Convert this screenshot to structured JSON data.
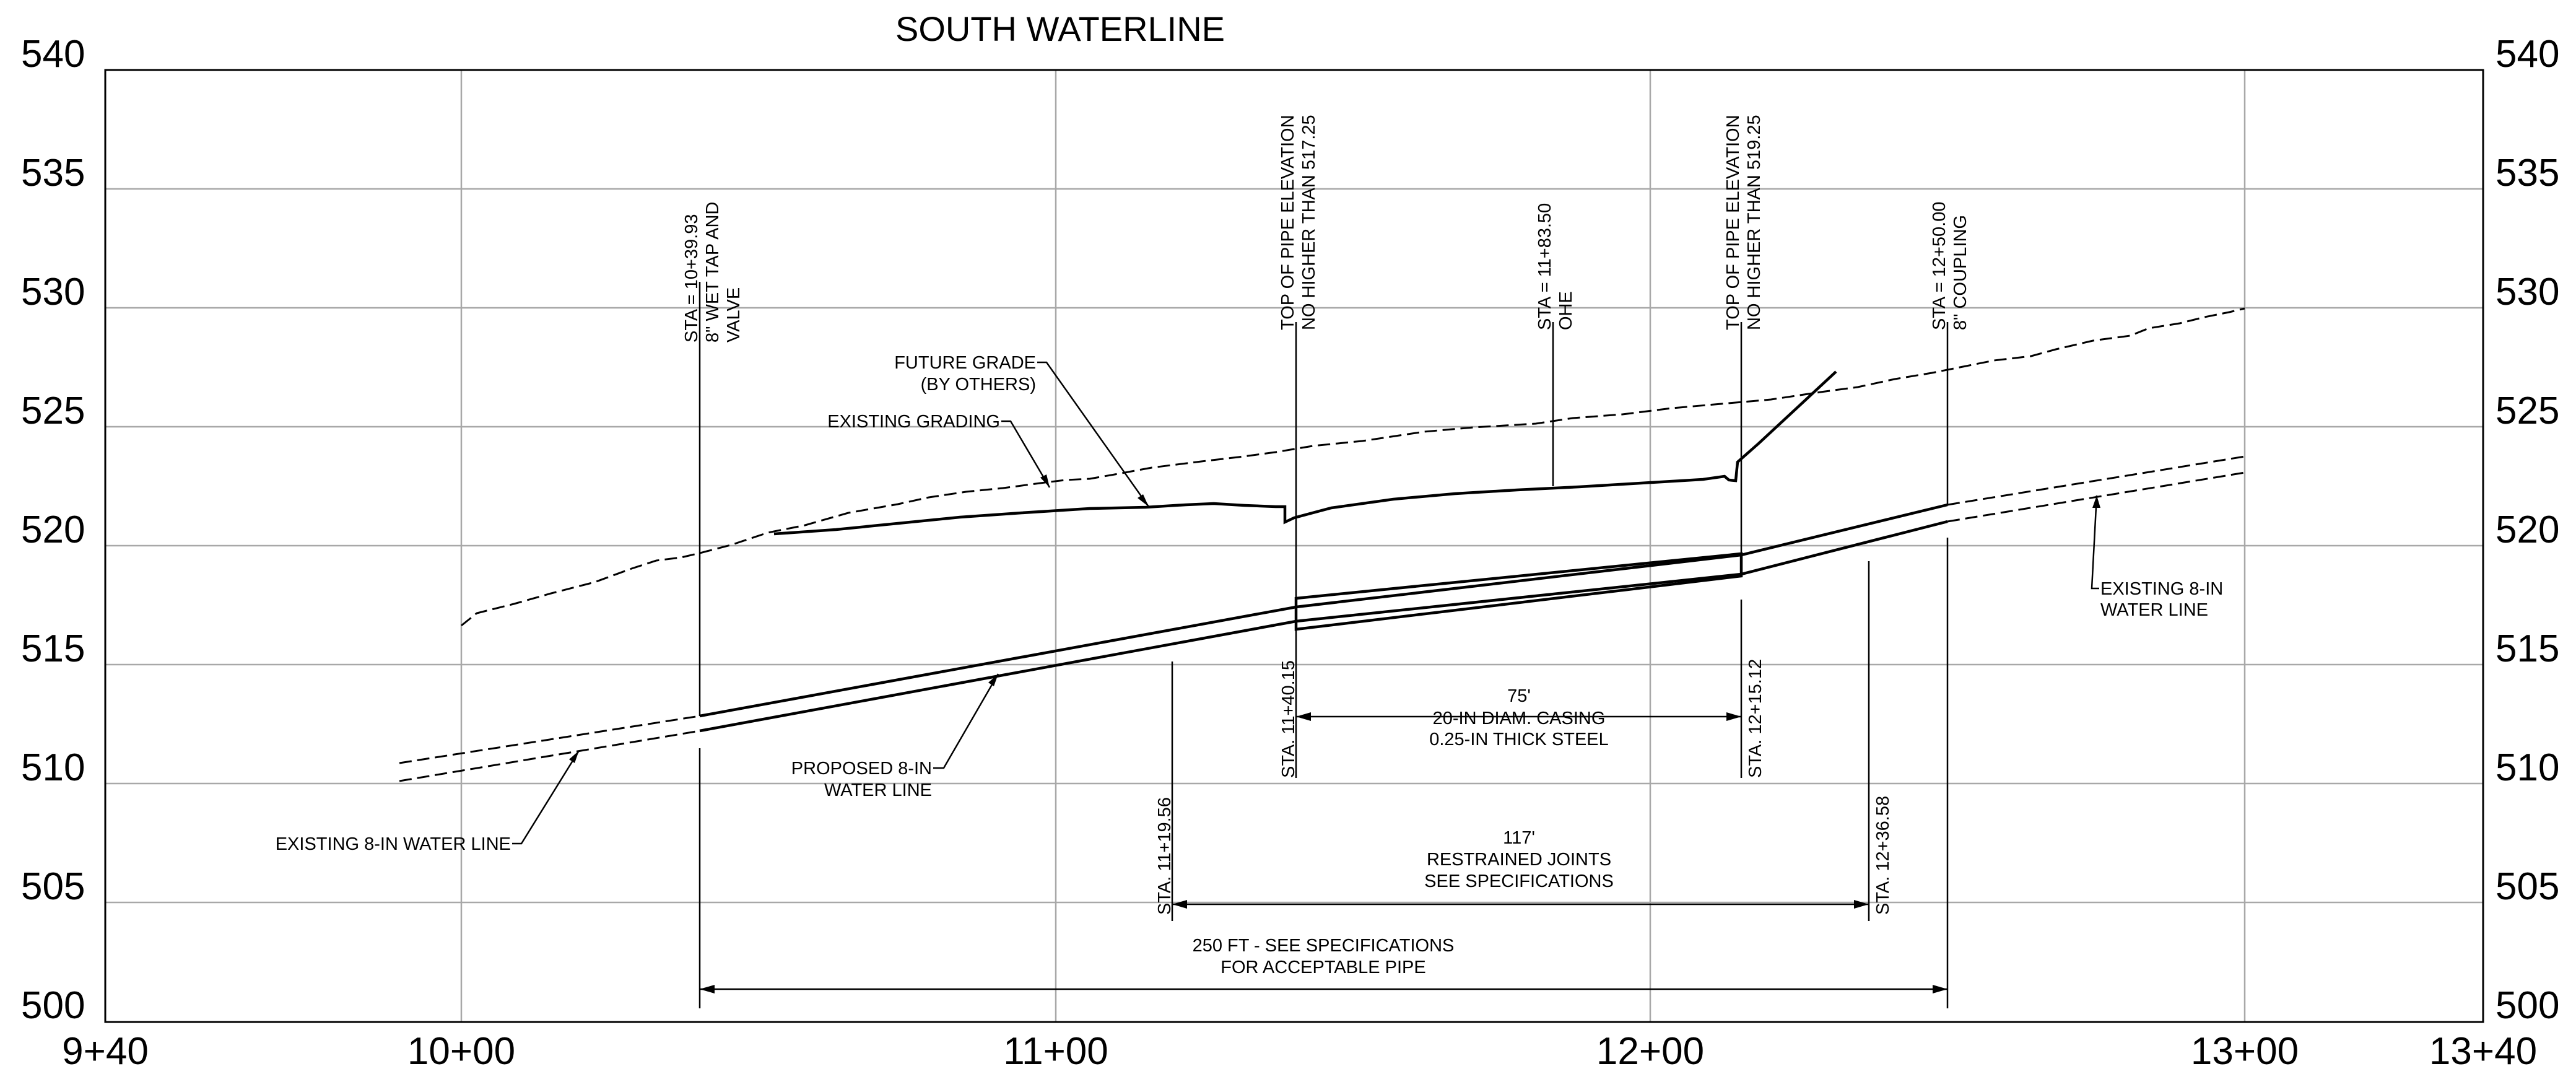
{
  "title": "SOUTH WATERLINE",
  "elevation_labels": [
    "540",
    "535",
    "530",
    "525",
    "520",
    "515",
    "510",
    "505",
    "500"
  ],
  "station_labels": [
    "9+40",
    "10+00",
    "11+00",
    "12+00",
    "13+00",
    "13+40"
  ],
  "callouts": {
    "sta_1": [
      "STA = 10+39.93",
      "8\" WET TAP AND",
      "VALVE"
    ],
    "top_pipe_1": [
      "TOP OF PIPE ELEVATION",
      "NO HIGHER THAN 517.25"
    ],
    "sta_ohe": [
      "STA = 11+83.50",
      "OHE"
    ],
    "top_pipe_2": [
      "TOP OF PIPE ELEVATION",
      "NO HIGHER THAN 519.25"
    ],
    "sta_end": [
      "STA = 12+50.00",
      "8\" COUPLING"
    ],
    "future_grade": [
      "FUTURE GRADE",
      "(BY OTHERS)"
    ],
    "existing_grading": "EXISTING GRADING",
    "existing_wl_right": [
      "EXISTING 8-IN",
      "WATER LINE"
    ],
    "existing_wl_left": "EXISTING 8-IN WATER LINE",
    "proposed_wl": [
      "PROPOSED 8-IN",
      "WATER LINE"
    ]
  },
  "stations": {
    "s_11_40": "STA. 11+40.15",
    "s_12_15": "STA. 12+15.12",
    "s_11_19": "STA. 11+19.56",
    "s_12_36": "STA. 12+36.58"
  },
  "dimensions": {
    "casing": [
      "75'",
      "20-IN DIAM. CASING",
      "0.25-IN THICK STEEL"
    ],
    "restrained": [
      "117'",
      "RESTRAINED JOINTS",
      "SEE SPECIFICATIONS"
    ],
    "total": [
      "250 FT - SEE SPECIFICATIONS",
      "FOR ACCEPTABLE PIPE"
    ]
  },
  "colors": {
    "line": "#000000",
    "grid": "#a8a8a8",
    "background": "#ffffff"
  }
}
